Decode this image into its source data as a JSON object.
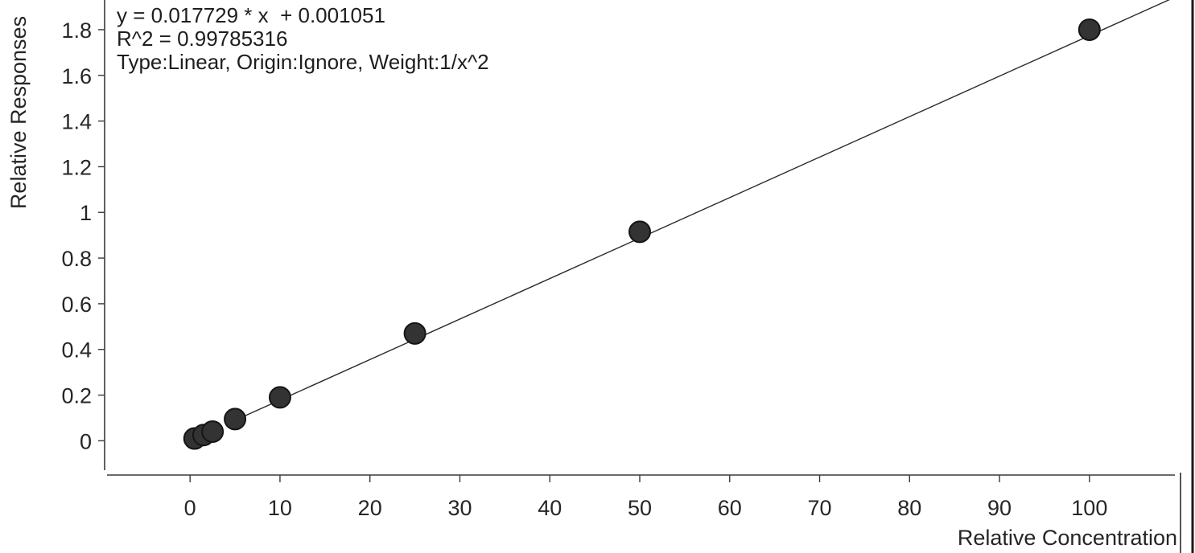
{
  "chart_data": {
    "type": "scatter",
    "xlabel": "Relative Concentration",
    "ylabel": "Relative Responses",
    "xlim": [
      -9.5,
      109.5
    ],
    "ylim": [
      -0.15,
      1.93
    ],
    "x_ticks": [
      0,
      10,
      20,
      30,
      40,
      50,
      60,
      70,
      80,
      90,
      100
    ],
    "y_ticks": [
      0,
      0.2,
      0.4,
      0.6,
      0.8,
      1,
      1.2,
      1.4,
      1.6,
      1.8
    ],
    "y_tick_labels": [
      "0",
      "0.2",
      "0.4",
      "0.6",
      "0.8",
      "1",
      "1.2",
      "1.4",
      "1.6",
      "1.8"
    ],
    "grid": false,
    "series": [
      {
        "points": [
          {
            "x": 0.5,
            "y": 0.01
          },
          {
            "x": 1.5,
            "y": 0.025
          },
          {
            "x": 2.5,
            "y": 0.04
          },
          {
            "x": 5,
            "y": 0.095
          },
          {
            "x": 10,
            "y": 0.19
          },
          {
            "x": 25,
            "y": 0.47
          },
          {
            "x": 50,
            "y": 0.915
          },
          {
            "x": 100,
            "y": 1.8
          }
        ]
      }
    ],
    "fit": {
      "type": "linear",
      "slope": 0.017729,
      "intercept": 0.001051,
      "x_range": [
        5,
        109.5
      ]
    },
    "annotations": [
      "y = 0.017729 * x  + 0.001051",
      "R^2 = 0.99785316",
      "Type:Linear, Origin:Ignore, Weight:1/x^2"
    ]
  }
}
